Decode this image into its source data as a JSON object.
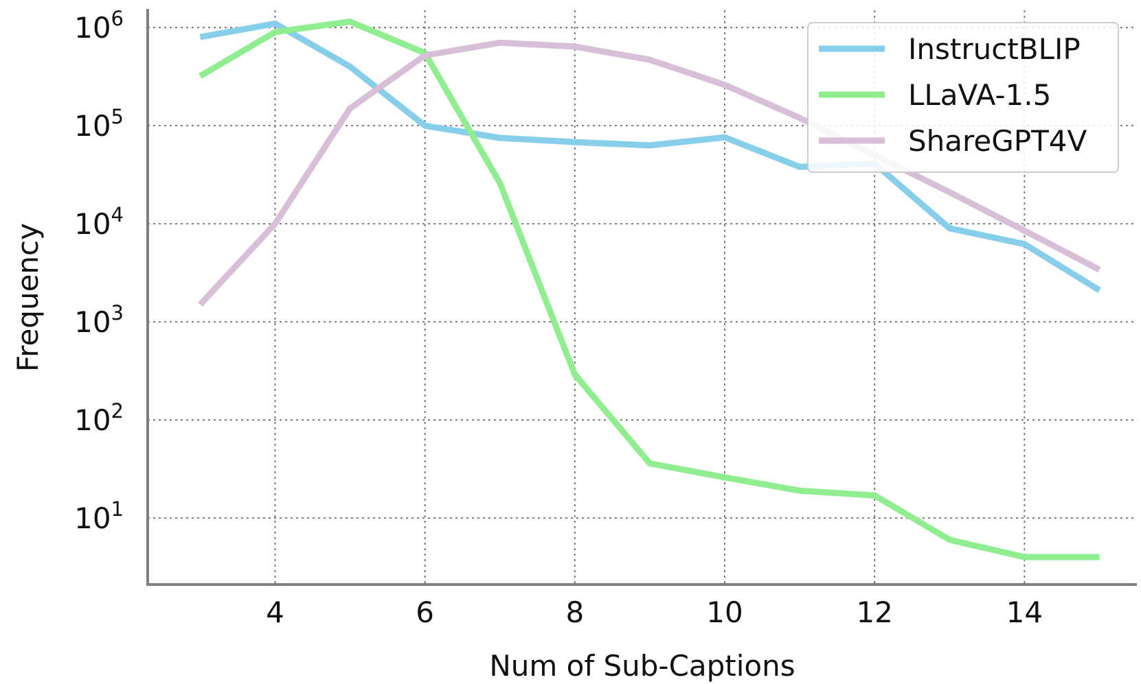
{
  "chart_data": {
    "type": "line",
    "xlabel": "Num of Sub-Captions",
    "ylabel": "Frequency",
    "yscale": "log",
    "xlim": [
      2.3,
      15.5
    ],
    "ylim": [
      2.1,
      1500000
    ],
    "x": [
      3,
      4,
      5,
      6,
      7,
      8,
      9,
      10,
      11,
      12,
      13,
      14,
      15
    ],
    "x_ticks": [
      4,
      6,
      8,
      10,
      12,
      14
    ],
    "y_ticks": [
      {
        "value": 10,
        "base": "10",
        "exp": "1"
      },
      {
        "value": 100,
        "base": "10",
        "exp": "2"
      },
      {
        "value": 1000,
        "base": "10",
        "exp": "3"
      },
      {
        "value": 10000,
        "base": "10",
        "exp": "4"
      },
      {
        "value": 100000,
        "base": "10",
        "exp": "5"
      },
      {
        "value": 1000000,
        "base": "10",
        "exp": "6"
      }
    ],
    "grid": true,
    "legend_position": "top-right",
    "series": [
      {
        "name": "InstructBLIP",
        "color": "#87ceeb",
        "values": [
          800000,
          1100000,
          400000,
          100000,
          75000,
          68000,
          63000,
          76000,
          38000,
          41000,
          9000,
          6200,
          2100
        ]
      },
      {
        "name": "LLaVA-1.5",
        "color": "#90ee90",
        "values": [
          320000,
          900000,
          1150000,
          550000,
          26000,
          290,
          36,
          26,
          19,
          17,
          6,
          4,
          4
        ]
      },
      {
        "name": "ShareGPT4V",
        "color": "#d8bfd8",
        "values": [
          1500,
          10000,
          150000,
          520000,
          700000,
          640000,
          470000,
          260000,
          120000,
          50000,
          21000,
          8500,
          3400
        ]
      }
    ]
  }
}
